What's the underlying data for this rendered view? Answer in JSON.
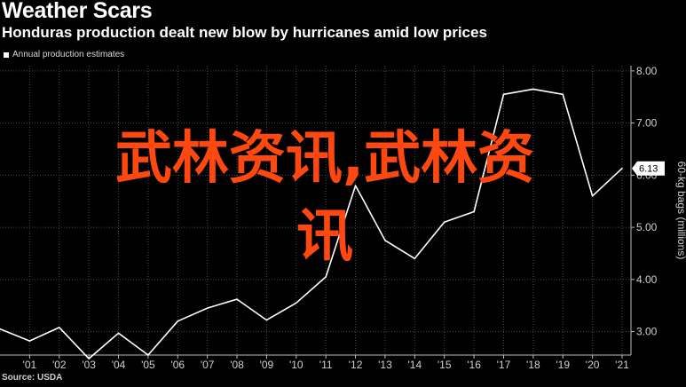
{
  "header": {
    "title": "Weather Scars",
    "subtitle": "Honduras production dealt new blow by hurricanes amid low prices"
  },
  "legend": {
    "label": "Annual production estimates"
  },
  "source": "Source: USDA",
  "watermark": {
    "line1": "武林资讯,武林资",
    "line2": "讯"
  },
  "colors": {
    "background": "#000000",
    "line": "#ffffff",
    "grid": "#4a4a4a",
    "watermark": "#ff4810"
  },
  "chart_data": {
    "type": "line",
    "title": "Weather Scars",
    "subtitle": "Honduras production dealt new blow by hurricanes amid low prices",
    "ylabel": "60-kg bags (millions)",
    "xlabel": "",
    "x_ticks": [
      "'01",
      "'02",
      "'03",
      "'04",
      "'05",
      "'06",
      "'07",
      "'08",
      "'09",
      "'10",
      "'11",
      "'12",
      "'13",
      "'14",
      "'15",
      "'16",
      "'17",
      "'18",
      "'19",
      "'20",
      "'21"
    ],
    "y_ticks": [
      "3.00",
      "4.00",
      "5.00",
      "6.00",
      "7.00",
      "8.00"
    ],
    "ylim": [
      2.55,
      8.1
    ],
    "xlim": [
      2000,
      2021.3
    ],
    "grid": true,
    "value_label": "6.13",
    "series": [
      {
        "name": "Annual production estimates",
        "x": [
          2000,
          2001,
          2002,
          2003,
          2004,
          2005,
          2006,
          2007,
          2008,
          2009,
          2010,
          2011,
          2012,
          2013,
          2014,
          2015,
          2016,
          2017,
          2018,
          2019,
          2020,
          2021
        ],
        "values": [
          3.05,
          2.82,
          3.08,
          2.48,
          2.97,
          2.55,
          3.2,
          3.45,
          3.62,
          3.22,
          3.55,
          4.05,
          5.8,
          4.75,
          4.4,
          5.1,
          5.3,
          7.55,
          7.65,
          7.55,
          5.6,
          6.13
        ]
      }
    ]
  }
}
